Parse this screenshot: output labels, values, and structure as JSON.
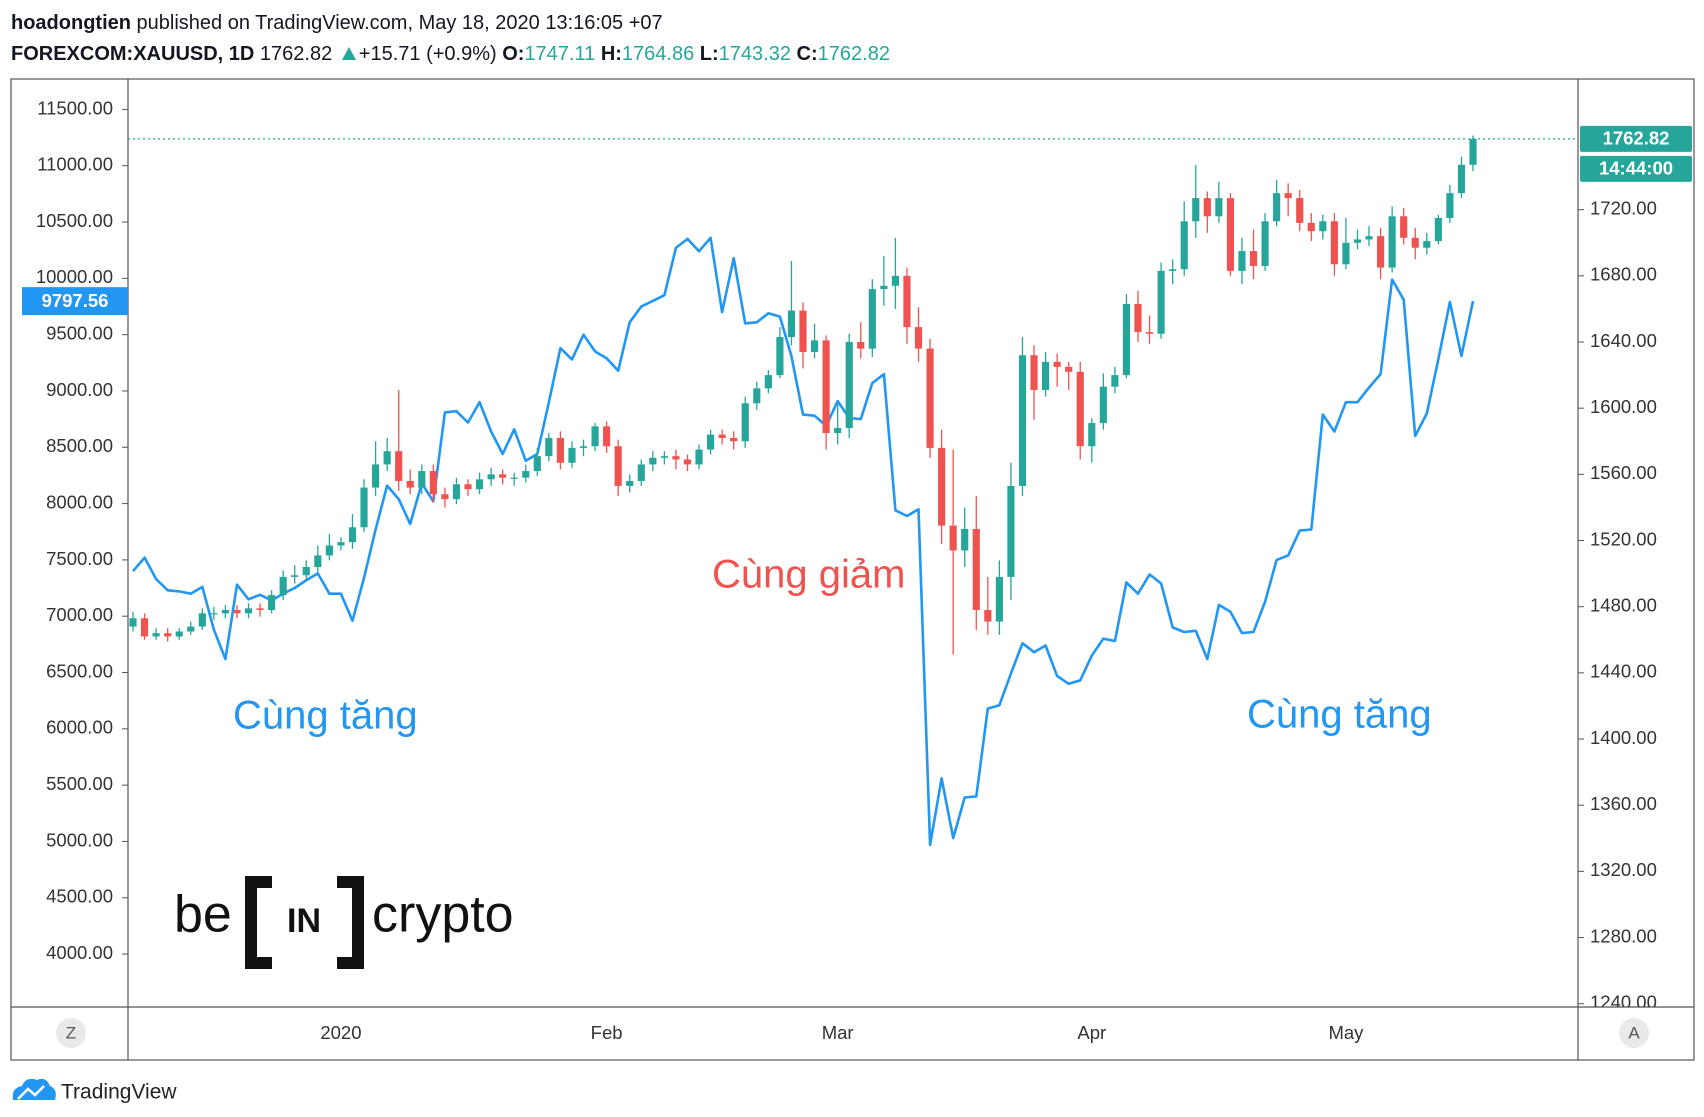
{
  "header": {
    "author": "hoadongtien",
    "published": "published on TradingView.com, May 18, 2020 13:16:05 +07",
    "change": "+15.71 (+0.9%)",
    "ohlc_labels": [
      "O:",
      "H:",
      "L:",
      "C:"
    ]
  },
  "logo": {
    "left": "be",
    "mid": "IN",
    "right": "crypto"
  },
  "footer": {
    "brand": "TradingView",
    "left_button": "Z",
    "right_button": "A"
  },
  "chart_data": {
    "type": "candlestick",
    "categories": [
      null,
      null,
      null,
      null,
      null,
      null,
      null,
      null,
      null,
      null,
      null,
      null,
      null,
      null,
      null,
      null,
      null,
      null,
      "2020",
      null,
      null,
      null,
      null,
      null,
      null,
      null,
      null,
      null,
      null,
      null,
      null,
      null,
      null,
      null,
      null,
      null,
      null,
      null,
      null,
      null,
      null,
      "Feb",
      null,
      null,
      null,
      null,
      null,
      null,
      null,
      null,
      null,
      null,
      null,
      null,
      null,
      null,
      null,
      null,
      null,
      null,
      null,
      "Mar",
      null,
      null,
      null,
      null,
      null,
      null,
      null,
      null,
      null,
      null,
      null,
      null,
      null,
      null,
      null,
      null,
      null,
      null,
      null,
      null,
      null,
      "Apr",
      null,
      null,
      null,
      null,
      null,
      null,
      null,
      null,
      null,
      null,
      null,
      null,
      null,
      null,
      null,
      null,
      null,
      null,
      null,
      null,
      null,
      "May",
      null,
      null,
      null,
      null,
      null,
      null,
      null,
      null,
      null,
      null,
      null
    ],
    "series": [
      {
        "name": "FOREXCOM:XAUUSD, 1D",
        "type": "candlestick",
        "axis": "y2",
        "up_color": "#26a69a",
        "down_color": "#ef5350",
        "open": [
          1468,
          1473,
          1462,
          1464,
          1462,
          1465,
          1468,
          1476,
          1476,
          1478,
          1476,
          1479,
          1478,
          1487,
          1498,
          1499,
          1504,
          1511,
          1517,
          1519,
          1528,
          1552,
          1566,
          1574,
          1556,
          1552,
          1562,
          1548,
          1545,
          1554,
          1551,
          1557,
          1560,
          1558,
          1558,
          1562,
          1571,
          1582,
          1567,
          1576,
          1577,
          1589,
          1577,
          1553,
          1556,
          1566,
          1570,
          1571,
          1569,
          1566,
          1575,
          1584,
          1582,
          1580,
          1603,
          1612,
          1620,
          1643,
          1659,
          1634,
          1641,
          1585,
          1588,
          1640,
          1636,
          1672,
          1674,
          1680,
          1649,
          1636,
          1576,
          1529,
          1514,
          1527,
          1478,
          1471,
          1498,
          1553,
          1632,
          1611,
          1628,
          1625,
          1622,
          1577,
          1591,
          1613,
          1620,
          1663,
          1646,
          1645,
          1683,
          1684,
          1713,
          1727,
          1716,
          1727,
          1683,
          1695,
          1686,
          1713,
          1730,
          1727,
          1712,
          1707,
          1713,
          1687,
          1700,
          1702,
          1704,
          1685,
          1716,
          1703,
          1697,
          1701,
          1715,
          1730,
          1747.11
        ],
        "high": [
          1477,
          1476,
          1467,
          1467,
          1467,
          1471,
          1479,
          1480,
          1481,
          1481,
          1482,
          1482,
          1490,
          1502,
          1505,
          1508,
          1517,
          1524,
          1522,
          1536,
          1557,
          1580,
          1582,
          1611,
          1563,
          1566,
          1566,
          1552,
          1558,
          1557,
          1561,
          1564,
          1563,
          1561,
          1566,
          1576,
          1585,
          1586,
          1580,
          1581,
          1591,
          1592,
          1581,
          1560,
          1569,
          1574,
          1574,
          1575,
          1572,
          1578,
          1587,
          1587,
          1586,
          1607,
          1616,
          1623,
          1649,
          1689,
          1664,
          1651,
          1644,
          1604,
          1645,
          1652,
          1678,
          1692,
          1703,
          1685,
          1661,
          1642,
          1587,
          1575,
          1540,
          1547,
          1498,
          1508,
          1567,
          1643,
          1638,
          1634,
          1633,
          1628,
          1628,
          1594,
          1621,
          1625,
          1669,
          1671,
          1656,
          1688,
          1690,
          1725,
          1747,
          1731,
          1737,
          1730,
          1703,
          1708,
          1718,
          1738,
          1736,
          1732,
          1718,
          1717,
          1718,
          1715,
          1708,
          1710,
          1709,
          1722,
          1721,
          1709,
          1706,
          1717,
          1735,
          1752,
          1764.86
        ],
        "low": [
          1465,
          1460,
          1460,
          1459,
          1460,
          1463,
          1466,
          1472,
          1473,
          1473,
          1473,
          1474,
          1476,
          1484,
          1494,
          1496,
          1501,
          1508,
          1514,
          1515,
          1525,
          1547,
          1562,
          1550,
          1548,
          1548,
          1543,
          1540,
          1542,
          1547,
          1548,
          1553,
          1554,
          1553,
          1555,
          1559,
          1568,
          1563,
          1564,
          1571,
          1574,
          1573,
          1547,
          1549,
          1553,
          1562,
          1566,
          1563,
          1562,
          1563,
          1572,
          1578,
          1575,
          1576,
          1599,
          1609,
          1618,
          1638,
          1624,
          1630,
          1575,
          1578,
          1582,
          1630,
          1631,
          1662,
          1660,
          1639,
          1628,
          1570,
          1518,
          1451,
          1504,
          1466,
          1463,
          1463,
          1484,
          1547,
          1593,
          1607,
          1613,
          1611,
          1569,
          1567,
          1587,
          1609,
          1618,
          1640,
          1639,
          1642,
          1675,
          1680,
          1703,
          1706,
          1712,
          1680,
          1675,
          1678,
          1683,
          1710,
          1716,
          1707,
          1701,
          1702,
          1680,
          1684,
          1696,
          1698,
          1678,
          1682,
          1699,
          1690,
          1693,
          1699,
          1712,
          1727,
          1743.32
        ],
        "close": [
          1473,
          1462,
          1464,
          1462,
          1465,
          1468,
          1476,
          1476,
          1478,
          1476,
          1479,
          1478,
          1487,
          1498,
          1499,
          1504,
          1511,
          1517,
          1519,
          1528,
          1552,
          1566,
          1574,
          1556,
          1552,
          1562,
          1548,
          1545,
          1554,
          1551,
          1557,
          1560,
          1558,
          1558,
          1562,
          1571,
          1582,
          1567,
          1576,
          1577,
          1589,
          1577,
          1553,
          1556,
          1566,
          1570,
          1571,
          1569,
          1566,
          1575,
          1584,
          1582,
          1580,
          1603,
          1612,
          1620,
          1643,
          1659,
          1634,
          1641,
          1585,
          1588,
          1640,
          1636,
          1672,
          1674,
          1680,
          1649,
          1636,
          1576,
          1529,
          1514,
          1527,
          1478,
          1471,
          1498,
          1553,
          1632,
          1611,
          1628,
          1625,
          1622,
          1577,
          1591,
          1613,
          1620,
          1663,
          1646,
          1645,
          1683,
          1684,
          1713,
          1727,
          1716,
          1727,
          1683,
          1695,
          1686,
          1713,
          1730,
          1727,
          1712,
          1707,
          1713,
          1687,
          1700,
          1702,
          1704,
          1685,
          1716,
          1703,
          1697,
          1701,
          1715,
          1730,
          1747.11,
          1762.82
        ]
      },
      {
        "type": "line",
        "axis": "y",
        "color": "#2196f3",
        "values": [
          7400,
          7520,
          7330,
          7230,
          7220,
          7200,
          7260,
          6880,
          6620,
          7280,
          7150,
          7190,
          7140,
          7200,
          7250,
          7320,
          7380,
          7200,
          7200,
          6960,
          7340,
          7770,
          8160,
          8040,
          7820,
          8180,
          8020,
          8810,
          8820,
          8720,
          8900,
          8640,
          8440,
          8660,
          8380,
          8440,
          8900,
          9380,
          9280,
          9500,
          9350,
          9290,
          9180,
          9610,
          9750,
          9800,
          9850,
          10270,
          10350,
          10240,
          10360,
          9700,
          10180,
          9600,
          9610,
          9690,
          9660,
          9310,
          8790,
          8780,
          8690,
          8910,
          8760,
          8750,
          9070,
          9150,
          7940,
          7890,
          7950,
          4970,
          5560,
          5030,
          5390,
          5400,
          6180,
          6210,
          6490,
          6760,
          6680,
          6740,
          6470,
          6400,
          6430,
          6650,
          6800,
          6780,
          7300,
          7200,
          7370,
          7290,
          6900,
          6860,
          6870,
          6620,
          7100,
          7040,
          6850,
          6860,
          7130,
          7500,
          7540,
          7760,
          7770,
          8790,
          8640,
          8900,
          8900,
          9030,
          9150,
          9990,
          9810,
          8600,
          8800,
          9280,
          9790,
          9310,
          9797.56
        ]
      }
    ],
    "ylim": [
      3530,
      11770
    ],
    "yticks": [
      {
        "value": 4000,
        "label": "4000.00"
      },
      {
        "value": 4500,
        "label": "4500.00"
      },
      {
        "value": 5000,
        "label": "5000.00"
      },
      {
        "value": 5500,
        "label": "5500.00"
      },
      {
        "value": 6000,
        "label": "6000.00"
      },
      {
        "value": 6500,
        "label": "6500.00"
      },
      {
        "value": 7000,
        "label": "7000.00"
      },
      {
        "value": 7500,
        "label": "7500.00"
      },
      {
        "value": 8000,
        "label": "8000.00"
      },
      {
        "value": 8500,
        "label": "8500.00"
      },
      {
        "value": 9000,
        "label": "9000.00"
      },
      {
        "value": 9500,
        "label": "9500.00"
      },
      {
        "value": 10000,
        "label": "10000.00"
      },
      {
        "value": 10500,
        "label": "10500.00"
      },
      {
        "value": 11000,
        "label": "11000.00"
      },
      {
        "value": 11500,
        "label": "11500.00"
      }
    ],
    "y2lim": [
      1238,
      1799
    ],
    "y2ticks": [
      {
        "value": 1240,
        "label": "1240.00"
      },
      {
        "value": 1280,
        "label": "1280.00"
      },
      {
        "value": 1320,
        "label": "1320.00"
      },
      {
        "value": 1360,
        "label": "1360.00"
      },
      {
        "value": 1400,
        "label": "1400.00"
      },
      {
        "value": 1440,
        "label": "1440.00"
      },
      {
        "value": 1480,
        "label": "1480.00"
      },
      {
        "value": 1520,
        "label": "1520.00"
      },
      {
        "value": 1560,
        "label": "1560.00"
      },
      {
        "value": 1600,
        "label": "1600.00"
      },
      {
        "value": 1640,
        "label": "1640.00"
      },
      {
        "value": 1680,
        "label": "1680.00"
      },
      {
        "value": 1720,
        "label": "1720.00"
      }
    ],
    "grid": false,
    "countdown": "14:44:00",
    "annotations": [
      {
        "text": "Cùng tăng",
        "color": "#2196f3"
      },
      {
        "text": "Cùng giảm",
        "color": "#ef5350"
      },
      {
        "text": "Cùng tăng",
        "color": "#2196f3"
      }
    ]
  }
}
